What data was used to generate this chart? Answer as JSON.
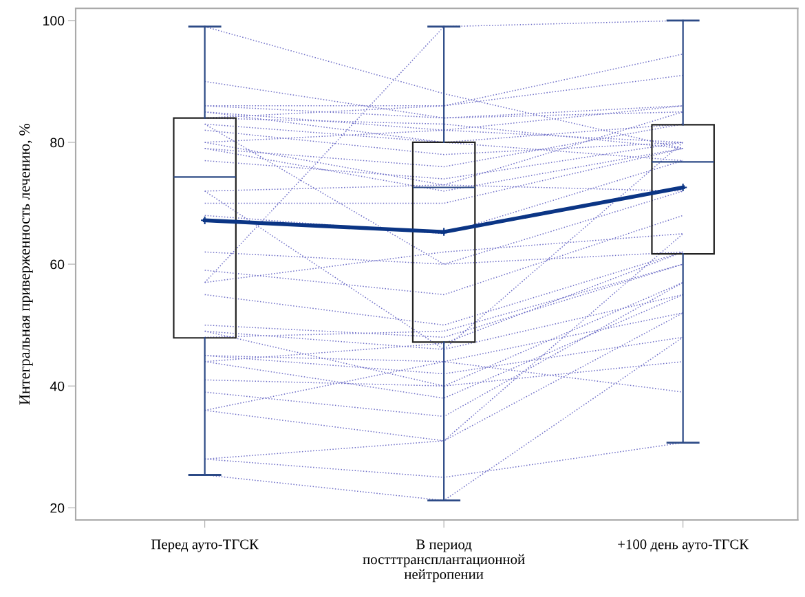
{
  "chart_data": {
    "type": "box",
    "ylabel": "Интегральная приверженность лечению, %",
    "categories": [
      "Перед ауто-ТГСК",
      "В период\nпостттрансплантационной\nнейтропении",
      "+100 день ауто-ТГСК"
    ],
    "ylim": [
      18,
      102
    ],
    "yticks": [
      20,
      40,
      60,
      80,
      100
    ],
    "grid": false,
    "boxes": [
      {
        "low": 25.4,
        "q1": 47.9,
        "median": 74.3,
        "q3": 84,
        "high": 99
      },
      {
        "low": 21.2,
        "q1": 47.2,
        "median": 72.6,
        "q3": 80,
        "high": 99
      },
      {
        "low": 30.7,
        "q1": 61.7,
        "median": 76.8,
        "q3": 82.9,
        "high": 100
      }
    ],
    "series": [
      {
        "type": "line",
        "color": "#7070c8",
        "line_style": "dotted",
        "values": [
          99,
          88,
          79
        ]
      },
      {
        "type": "line",
        "color": "#7070c8",
        "line_style": "dotted",
        "values": [
          90,
          84,
          86
        ]
      },
      {
        "type": "line",
        "color": "#7070c8",
        "line_style": "dotted",
        "values": [
          86,
          86,
          91
        ]
      },
      {
        "type": "line",
        "color": "#7070c8",
        "line_style": "dotted",
        "values": [
          86,
          84,
          85
        ]
      },
      {
        "type": "line",
        "color": "#7070c8",
        "line_style": "dotted",
        "values": [
          85,
          82,
          80
        ]
      },
      {
        "type": "line",
        "color": "#7070c8",
        "line_style": "dotted",
        "values": [
          85,
          80,
          83
        ]
      },
      {
        "type": "line",
        "color": "#7070c8",
        "line_style": "dotted",
        "values": [
          84,
          86,
          94.5
        ]
      },
      {
        "type": "line",
        "color": "#7070c8",
        "line_style": "dotted",
        "values": [
          84,
          83,
          79
        ]
      },
      {
        "type": "line",
        "color": "#7070c8",
        "line_style": "dotted",
        "values": [
          83,
          80,
          77
        ]
      },
      {
        "type": "line",
        "color": "#7070c8",
        "line_style": "dotted",
        "values": [
          82,
          78,
          80
        ]
      },
      {
        "type": "line",
        "color": "#7070c8",
        "line_style": "dotted",
        "values": [
          80,
          82,
          86
        ]
      },
      {
        "type": "line",
        "color": "#7070c8",
        "line_style": "dotted",
        "values": [
          80,
          73,
          72
        ]
      },
      {
        "type": "line",
        "color": "#7070c8",
        "line_style": "dotted",
        "values": [
          79,
          76,
          83
        ]
      },
      {
        "type": "line",
        "color": "#7070c8",
        "line_style": "dotted",
        "values": [
          79,
          72,
          79
        ]
      },
      {
        "type": "line",
        "color": "#7070c8",
        "line_style": "dotted",
        "values": [
          77,
          74,
          80
        ]
      },
      {
        "type": "line",
        "color": "#7070c8",
        "line_style": "dotted",
        "values": [
          72,
          73,
          85
        ]
      },
      {
        "type": "line",
        "color": "#7070c8",
        "line_style": "dotted",
        "values": [
          70,
          70,
          79
        ]
      },
      {
        "type": "line",
        "color": "#7070c8",
        "line_style": "dotted",
        "values": [
          68,
          65,
          77
        ]
      },
      {
        "type": "line",
        "color": "#7070c8",
        "line_style": "dotted",
        "values": [
          62,
          60,
          72
        ]
      },
      {
        "type": "line",
        "color": "#7070c8",
        "line_style": "dotted",
        "values": [
          59,
          55,
          68
        ]
      },
      {
        "type": "line",
        "color": "#7070c8",
        "line_style": "dotted",
        "values": [
          57,
          62,
          65
        ]
      },
      {
        "type": "line",
        "color": "#7070c8",
        "line_style": "dotted",
        "values": [
          55,
          50,
          62
        ]
      },
      {
        "type": "line",
        "color": "#7070c8",
        "line_style": "dotted",
        "values": [
          50,
          48,
          60
        ]
      },
      {
        "type": "line",
        "color": "#7070c8",
        "line_style": "dotted",
        "values": [
          49,
          40,
          57
        ]
      },
      {
        "type": "line",
        "color": "#7070c8",
        "line_style": "dotted",
        "values": [
          49,
          46,
          55
        ]
      },
      {
        "type": "line",
        "color": "#7070c8",
        "line_style": "dotted",
        "values": [
          48,
          49,
          60
        ]
      },
      {
        "type": "line",
        "color": "#7070c8",
        "line_style": "dotted",
        "values": [
          45,
          44,
          52
        ]
      },
      {
        "type": "line",
        "color": "#7070c8",
        "line_style": "dotted",
        "values": [
          45,
          42,
          48
        ]
      },
      {
        "type": "line",
        "color": "#7070c8",
        "line_style": "dotted",
        "values": [
          44,
          38,
          55
        ]
      },
      {
        "type": "line",
        "color": "#7070c8",
        "line_style": "dotted",
        "values": [
          44,
          47,
          62
        ]
      },
      {
        "type": "line",
        "color": "#7070c8",
        "line_style": "dotted",
        "values": [
          41,
          40,
          44
        ]
      },
      {
        "type": "line",
        "color": "#7070c8",
        "line_style": "dotted",
        "values": [
          39,
          35,
          57
        ]
      },
      {
        "type": "line",
        "color": "#7070c8",
        "line_style": "dotted",
        "values": [
          36,
          44,
          39
        ]
      },
      {
        "type": "line",
        "color": "#7070c8",
        "line_style": "dotted",
        "values": [
          36,
          31,
          52
        ]
      },
      {
        "type": "line",
        "color": "#7070c8",
        "line_style": "dotted",
        "values": [
          28,
          31,
          65
        ]
      },
      {
        "type": "line",
        "color": "#7070c8",
        "line_style": "dotted",
        "values": [
          25.4,
          21.2,
          48
        ]
      },
      {
        "type": "line",
        "color": "#7070c8",
        "line_style": "dotted",
        "values": [
          28,
          25,
          30.7
        ]
      },
      {
        "type": "line",
        "color": "#7070c8",
        "line_style": "dotted",
        "values": [
          57,
          99,
          100
        ]
      },
      {
        "type": "line",
        "color": "#7070c8",
        "line_style": "dotted",
        "values": [
          72,
          46,
          80
        ]
      },
      {
        "type": "line",
        "color": "#7070c8",
        "line_style": "dotted",
        "values": [
          83,
          60,
          62
        ]
      },
      {
        "type": "line",
        "color": "#0b3585",
        "line_style": "solid",
        "marker": "cross",
        "values": [
          67.2,
          65.3,
          72.6
        ]
      }
    ]
  }
}
